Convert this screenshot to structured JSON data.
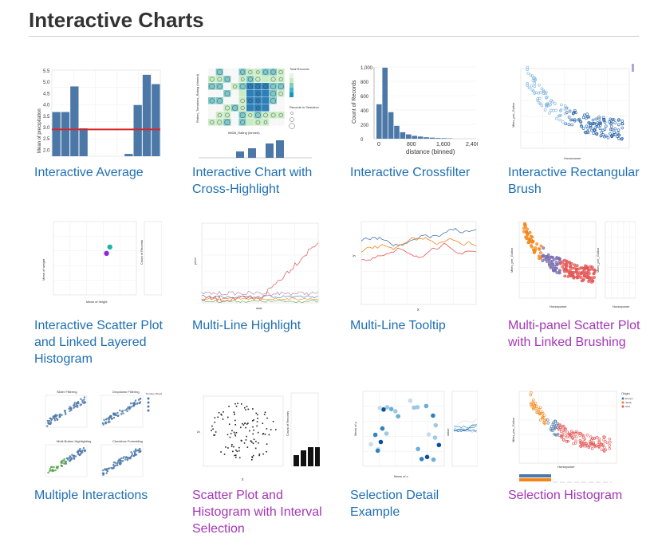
{
  "page": {
    "title": "Interactive Charts"
  },
  "colors": {
    "link": "#1f6fb3",
    "visited": "#a436b6",
    "bar": "#4c78a8",
    "rule": "#cccccc"
  },
  "cards": [
    {
      "label": "Interactive Average",
      "visited": false
    },
    {
      "label": "Interactive Chart with Cross-Highlight",
      "visited": false
    },
    {
      "label": "Interactive Crossfilter",
      "visited": false
    },
    {
      "label": "Interactive Rectangular Brush",
      "visited": false
    },
    {
      "label": "Interactive Scatter Plot and Linked Layered Histogram",
      "visited": false
    },
    {
      "label": "Multi-Line Highlight",
      "visited": false
    },
    {
      "label": "Multi-Line Tooltip",
      "visited": false
    },
    {
      "label": "Multi-panel Scatter Plot with Linked Brushing",
      "visited": true
    },
    {
      "label": "Multiple Interactions",
      "visited": false
    },
    {
      "label": "Scatter Plot and Histogram with Interval Selection",
      "visited": true
    },
    {
      "label": "Selection Detail Example",
      "visited": false
    },
    {
      "label": "Selection Histogram",
      "visited": true
    }
  ],
  "thumbs": {
    "avg": {
      "ylabel": "Mean of precipitation",
      "ticks": [
        "5.5",
        "5.0",
        "4.5",
        "4.0",
        "3.5",
        "3.0",
        "2.5",
        "2.0"
      ],
      "values": [
        3.8,
        3.8,
        4.9,
        3.1,
        null,
        null,
        null,
        null,
        2.0,
        4.1,
        5.4,
        5.0
      ],
      "average": 3.05
    },
    "cross": {
      "ylabel": "Rotten_Tomatoes_Rating (binned)",
      "xlabel": "IMDB_Rating (binned)",
      "legend1": "Total Records",
      "legend2": "Records in Selection"
    },
    "crossfilter": {
      "ylabel": "Count of Records",
      "xlabel": "distance (binned)",
      "yticks": [
        "1,000",
        "800",
        "600",
        "400",
        "200",
        "0"
      ],
      "xticks": [
        "0",
        "800",
        "1,600",
        "2,400"
      ],
      "values": [
        480,
        990,
        370,
        180,
        90,
        60,
        40,
        30,
        20,
        15,
        10,
        8,
        5
      ]
    },
    "brush": {
      "ylabel": "Miles_per_Gallon",
      "xlabel": "Horsepower"
    },
    "scatterhist": {
      "ylabel": "Mean of weight",
      "xlabel": "Mean of height",
      "ylabel2": "Count of Records",
      "points": [
        {
          "x": 64,
          "y": 170,
          "c": "#8a2be2"
        },
        {
          "x": 68,
          "y": 196,
          "c": "#1ab5a5"
        }
      ]
    },
    "multiline": {
      "ylabel": "price",
      "xlabel": "date"
    },
    "tooltip": {
      "ylabel": "y",
      "xlabel": "x"
    },
    "multipanel": {
      "ylabel": "Miles_per_Gallon",
      "xlabel": "Horsepower"
    },
    "multiple": {
      "titles": [
        "Slider Filtering",
        "Dropdown Filtering",
        "Multi-Button Highlighting",
        "Checkbox Formatting"
      ],
      "legend": "Number_Bicycles_Production"
    },
    "interval": {
      "ylabel": "y",
      "xlabel": "x",
      "ylabel2": "Count of Records"
    },
    "detail": {
      "ylabel": "Mean of y",
      "xlabel": "Mean of x",
      "ylabel2": "value"
    },
    "selhist": {
      "ylabel": "Miles_per_Gallon",
      "xlabel": "Horsepower",
      "legend_title": "Origin",
      "legend": [
        "Europe",
        "Japan",
        "USA"
      ],
      "legend_colors": [
        "#4c78a8",
        "#f58518",
        "#e45756"
      ]
    }
  }
}
